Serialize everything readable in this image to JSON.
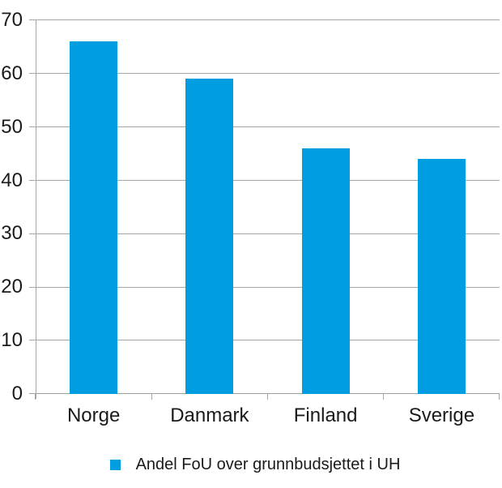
{
  "chart_data": {
    "type": "bar",
    "categories": [
      "Norge",
      "Danmark",
      "Finland",
      "Sverige"
    ],
    "values": [
      66,
      59,
      46,
      44
    ],
    "title": "",
    "xlabel": "",
    "ylabel": "",
    "ylim": [
      0,
      70
    ],
    "yticks": [
      0,
      10,
      20,
      30,
      40,
      50,
      60,
      70
    ],
    "grid": true,
    "legend": {
      "position": "bottom",
      "label": "Andel FoU over grunnbudsjettet i UH"
    },
    "colors": {
      "bar": "#009ee0",
      "gridline": "#a6a6a6",
      "text": "#1a1a1a"
    }
  }
}
